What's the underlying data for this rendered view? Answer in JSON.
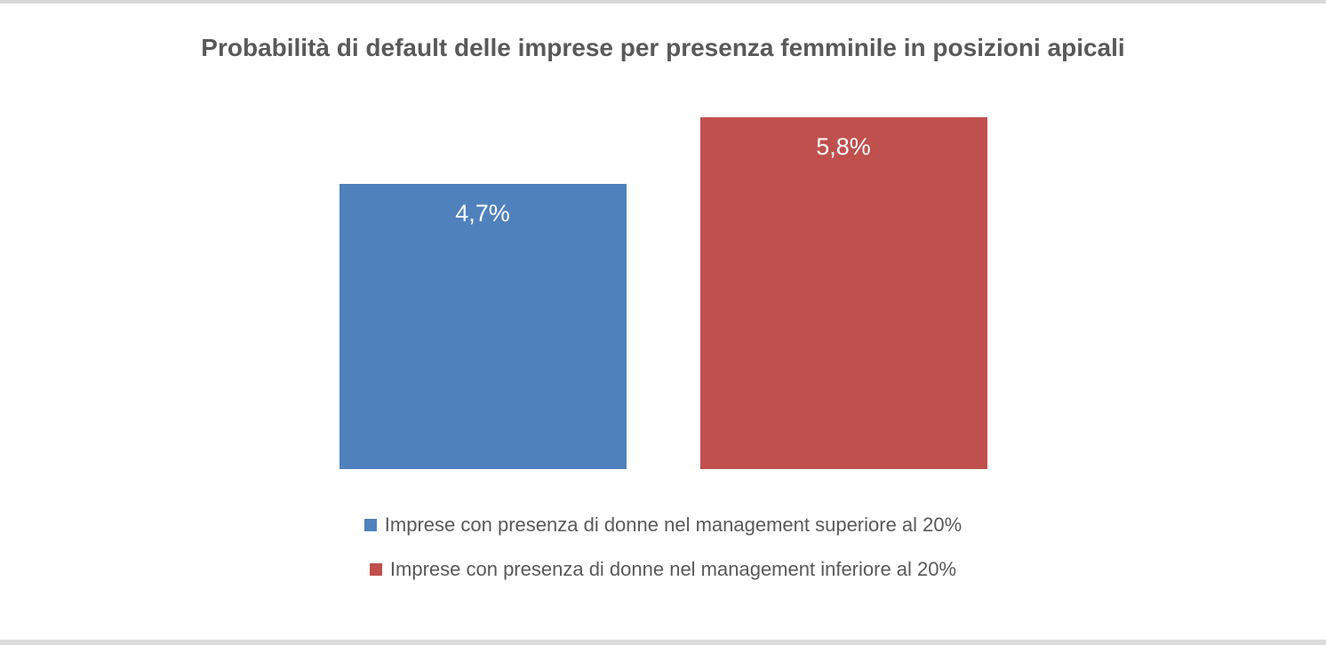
{
  "chart_data": {
    "type": "bar",
    "title": "Probabilità di default delle imprese per presenza femminile in posizioni apicali",
    "categories": [
      "Imprese con presenza di donne nel management superiore al 20%",
      "Imprese con presenza di donne nel management inferiore al 20%"
    ],
    "values": [
      4.7,
      5.8
    ],
    "value_labels": [
      "4,7%",
      "5,8%"
    ],
    "series_colors": [
      "#4F81BD",
      "#C0504D"
    ],
    "value_label_color": "#FFFFFF",
    "title_color": "#595959",
    "legend_text_color": "#595959",
    "xlabel": "",
    "ylabel": "",
    "ylim": [
      0,
      5.8
    ],
    "grid": false,
    "axes_visible": false,
    "legend_position": "bottom",
    "legend": [
      {
        "label": "Imprese con presenza di donne nel management superiore al 20%",
        "color": "#4F81BD"
      },
      {
        "label": "Imprese con presenza di donne nel management inferiore al 20%",
        "color": "#C0504D"
      }
    ]
  }
}
